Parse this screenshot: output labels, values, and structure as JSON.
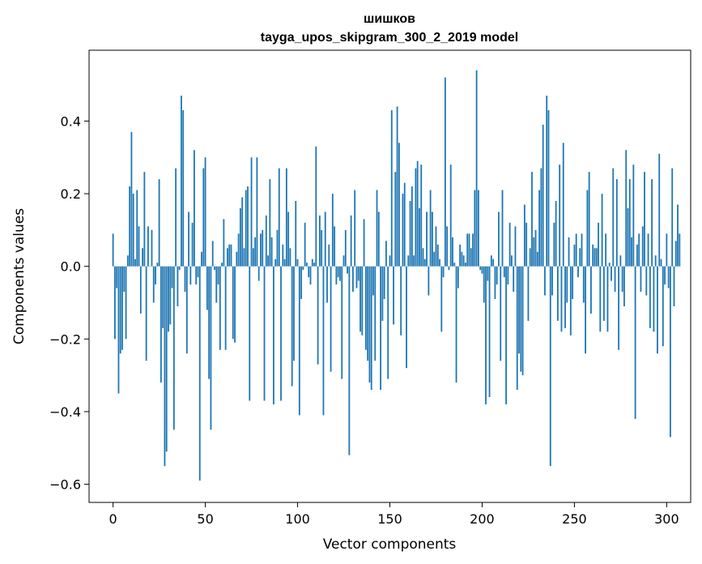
{
  "chart_data": {
    "type": "bar",
    "title_line1": "шишков",
    "title_line2": "tayga_upos_skipgram_300_2_2019 model",
    "xlabel": "Vector components",
    "ylabel": "Components values",
    "xlim": [
      -13,
      313
    ],
    "ylim": [
      -0.65,
      0.595
    ],
    "xticks": [
      0,
      50,
      100,
      150,
      200,
      250,
      300
    ],
    "xtick_labels": [
      "0",
      "50",
      "100",
      "150",
      "200",
      "250",
      "300"
    ],
    "yticks": [
      -0.6,
      -0.4,
      -0.2,
      0.0,
      0.2,
      0.4
    ],
    "ytick_labels": [
      "−0.6",
      "−0.4",
      "−0.2",
      "0.0",
      "0.2",
      "0.4"
    ],
    "bar_color": "#1f77b4",
    "values": [
      0.09,
      -0.2,
      -0.06,
      -0.35,
      -0.24,
      -0.23,
      -0.07,
      -0.2,
      0.03,
      0.22,
      0.37,
      0.2,
      0.02,
      0.21,
      0.11,
      -0.13,
      0.05,
      0.26,
      -0.26,
      0.11,
      0.0,
      0.1,
      -0.1,
      -0.05,
      0.01,
      0.24,
      -0.32,
      -0.17,
      -0.55,
      -0.51,
      -0.18,
      -0.16,
      -0.06,
      -0.45,
      0.27,
      -0.11,
      -0.01,
      0.47,
      0.43,
      -0.07,
      -0.24,
      0.15,
      -0.05,
      0.12,
      0.32,
      -0.05,
      -0.03,
      -0.59,
      0.04,
      0.27,
      0.3,
      -0.12,
      -0.31,
      -0.45,
      0.07,
      -0.01,
      -0.1,
      -0.05,
      -0.23,
      0.01,
      0.13,
      -0.23,
      0.05,
      0.06,
      0.06,
      -0.2,
      -0.21,
      0.04,
      0.09,
      0.16,
      0.19,
      0.05,
      0.21,
      0.22,
      -0.37,
      0.3,
      0.05,
      0.08,
      0.3,
      -0.04,
      0.09,
      0.1,
      -0.37,
      0.14,
      0.03,
      0.24,
      0.08,
      -0.38,
      0.02,
      0.1,
      0.27,
      -0.37,
      0.06,
      0.02,
      0.27,
      0.15,
      0.05,
      -0.33,
      -0.26,
      0.18,
      0.02,
      -0.41,
      -0.09,
      -0.01,
      0.12,
      0.01,
      -0.03,
      -0.05,
      0.02,
      0.01,
      0.33,
      -0.27,
      0.14,
      0.1,
      -0.41,
      0.15,
      -0.1,
      0.06,
      -0.29,
      0.2,
      0.11,
      -0.05,
      -0.03,
      -0.04,
      -0.31,
      0.03,
      0.1,
      -0.02,
      -0.52,
      0.14,
      -0.07,
      0.21,
      -0.06,
      -0.04,
      -0.18,
      -0.19,
      0.13,
      -0.23,
      -0.26,
      -0.32,
      -0.34,
      -0.08,
      -0.26,
      0.21,
      0.15,
      -0.34,
      -0.15,
      -0.09,
      0.07,
      -0.31,
      0.03,
      0.43,
      -0.16,
      0.26,
      0.44,
      0.34,
      -0.19,
      0.2,
      0.23,
      -0.28,
      0.03,
      0.18,
      0.22,
      0.03,
      0.27,
      0.29,
      0.16,
      0.28,
      0.05,
      0.02,
      0.15,
      -0.08,
      0.21,
      0.15,
      0.04,
      0.11,
      0.06,
      0.02,
      -0.18,
      -0.03,
      0.52,
      0.11,
      -0.01,
      0.28,
      0.08,
      0.01,
      -0.32,
      -0.06,
      0.06,
      0.04,
      0.03,
      0.01,
      0.09,
      0.09,
      0.05,
      0.09,
      0.21,
      0.54,
      0.21,
      -0.01,
      -0.02,
      -0.1,
      -0.38,
      -0.04,
      -0.36,
      0.03,
      0.02,
      -0.09,
      -0.05,
      0.15,
      -0.26,
      0.21,
      -0.03,
      -0.38,
      -0.05,
      0.12,
      0.03,
      -0.07,
      0.11,
      -0.34,
      -0.24,
      -0.29,
      -0.3,
      0.17,
      0.12,
      -0.15,
      0.05,
      0.26,
      0.08,
      0.1,
      0.04,
      0.21,
      0.27,
      0.39,
      -0.08,
      0.47,
      0.43,
      -0.55,
      -0.08,
      0.12,
      0.18,
      -0.15,
      0.28,
      -0.18,
      0.34,
      -0.17,
      -0.1,
      0.08,
      -0.19,
      -0.09,
      0.06,
      0.09,
      -0.03,
      0.05,
      0.09,
      -0.1,
      -0.24,
      0.21,
      0.26,
      -0.13,
      0.06,
      0.05,
      0.05,
      0.12,
      -0.18,
      0.2,
      -0.15,
      0.09,
      -0.18,
      0.01,
      -0.04,
      0.27,
      -0.07,
      0.24,
      -0.23,
      0.03,
      -0.07,
      -0.11,
      0.32,
      0.16,
      0.24,
      0.08,
      0.28,
      -0.42,
      0.06,
      0.09,
      -0.07,
      0.11,
      0.26,
      -0.08,
      0.09,
      -0.17,
      0.24,
      -0.18,
      0.03,
      -0.24,
      0.31,
      0.02,
      -0.22,
      -0.05,
      0.09,
      -0.06,
      -0.47,
      0.27,
      -0.11,
      0.07,
      0.17,
      0.09
    ]
  }
}
